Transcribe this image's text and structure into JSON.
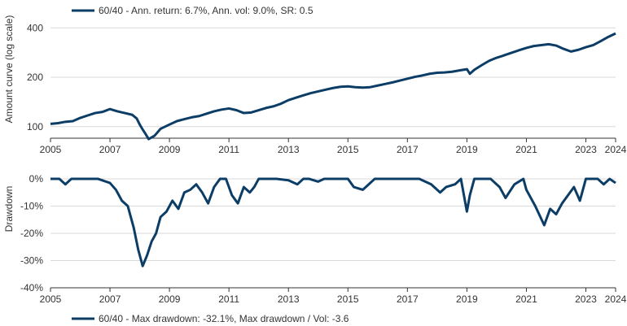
{
  "colors": {
    "series": "#0b3d66",
    "grid": "#d9d9d9",
    "axis": "#333333"
  },
  "chart_data": [
    {
      "type": "line",
      "ylabel": "Amount curve (log scale)",
      "yscale": "log",
      "ylim": [
        85,
        420
      ],
      "yticks": [
        100,
        200,
        400
      ],
      "xlim": [
        2005,
        2024
      ],
      "xticks": [
        2005,
        2007,
        2009,
        2011,
        2013,
        2015,
        2017,
        2019,
        2021,
        2023,
        2024
      ],
      "grid": "horizontal",
      "legend": {
        "placement": "top-left",
        "label": "60/40 - Ann. return: 6.7%,  Ann. vol: 9.0%, SR: 0.5"
      },
      "series": [
        {
          "name": "60/40 - Ann. return: 6.7%,  Ann. vol: 9.0%, SR: 0.5",
          "x": [
            2005.0,
            2005.25,
            2005.5,
            2005.75,
            2006.0,
            2006.25,
            2006.5,
            2006.75,
            2007.0,
            2007.25,
            2007.5,
            2007.75,
            2007.9,
            2008.0,
            2008.1,
            2008.2,
            2008.3,
            2008.5,
            2008.7,
            2009.0,
            2009.25,
            2009.5,
            2009.75,
            2010.0,
            2010.25,
            2010.5,
            2010.75,
            2011.0,
            2011.25,
            2011.5,
            2011.75,
            2012.0,
            2012.25,
            2012.5,
            2012.75,
            2013.0,
            2013.25,
            2013.5,
            2013.75,
            2014.0,
            2014.25,
            2014.5,
            2014.75,
            2015.0,
            2015.25,
            2015.5,
            2015.75,
            2016.0,
            2016.25,
            2016.5,
            2016.75,
            2017.0,
            2017.25,
            2017.5,
            2017.75,
            2018.0,
            2018.25,
            2018.5,
            2018.75,
            2019.0,
            2019.1,
            2019.25,
            2019.5,
            2019.75,
            2020.0,
            2020.15,
            2020.25,
            2020.5,
            2020.75,
            2021.0,
            2021.25,
            2021.5,
            2021.75,
            2022.0,
            2022.25,
            2022.5,
            2022.75,
            2023.0,
            2023.25,
            2023.5,
            2023.75,
            2024.0
          ],
          "values": [
            104,
            105,
            107,
            108,
            113,
            117,
            121,
            123,
            128,
            124,
            121,
            118,
            112,
            103,
            96,
            90,
            84,
            88,
            97,
            103,
            108,
            111,
            114,
            116,
            120,
            124,
            127,
            129,
            126,
            121,
            122,
            126,
            130,
            133,
            138,
            145,
            150,
            155,
            160,
            164,
            168,
            172,
            175,
            176,
            174,
            173,
            174,
            178,
            182,
            186,
            191,
            196,
            201,
            205,
            210,
            213,
            214,
            216,
            220,
            224,
            210,
            222,
            237,
            252,
            263,
            268,
            272,
            282,
            292,
            302,
            310,
            314,
            318,
            312,
            298,
            287,
            294,
            305,
            314,
            332,
            352,
            370
          ]
        }
      ]
    },
    {
      "type": "line",
      "ylabel": "Drawdown",
      "ylim": [
        -40,
        3
      ],
      "yticks": [
        0,
        -10,
        -20,
        -30,
        -40
      ],
      "ytick_labels": [
        "0%",
        "-10%",
        "-20%",
        "-30%",
        "-40%"
      ],
      "xlim": [
        2005,
        2024
      ],
      "xticks": [
        2005,
        2007,
        2009,
        2011,
        2013,
        2015,
        2017,
        2019,
        2021,
        2023,
        2024
      ],
      "grid": "horizontal",
      "legend": {
        "placement": "bottom-left",
        "label": "60/40 - Max drawdown: -32.1%,  Max drawdown / Vol: -3.6"
      },
      "series": [
        {
          "name": "60/40 - Max drawdown: -32.1%,  Max drawdown / Vol: -3.6",
          "x": [
            2005.0,
            2005.3,
            2005.5,
            2005.7,
            2006.0,
            2006.3,
            2006.6,
            2007.0,
            2007.2,
            2007.4,
            2007.6,
            2007.8,
            2007.95,
            2008.1,
            2008.25,
            2008.4,
            2008.55,
            2008.7,
            2008.9,
            2009.1,
            2009.3,
            2009.5,
            2009.7,
            2009.9,
            2010.1,
            2010.3,
            2010.5,
            2010.7,
            2010.9,
            2011.1,
            2011.3,
            2011.5,
            2011.7,
            2011.85,
            2012.0,
            2012.3,
            2012.6,
            2013.0,
            2013.3,
            2013.5,
            2013.7,
            2014.0,
            2014.2,
            2014.5,
            2014.8,
            2015.0,
            2015.2,
            2015.5,
            2015.7,
            2015.9,
            2016.1,
            2016.4,
            2016.7,
            2017.0,
            2017.4,
            2017.8,
            2018.1,
            2018.3,
            2018.6,
            2018.8,
            2019.0,
            2019.1,
            2019.25,
            2019.5,
            2019.8,
            2020.1,
            2020.3,
            2020.6,
            2020.9,
            2021.0,
            2021.3,
            2021.6,
            2021.8,
            2022.0,
            2022.2,
            2022.4,
            2022.6,
            2022.8,
            2023.0,
            2023.2,
            2023.4,
            2023.6,
            2023.8,
            2024.0
          ],
          "values": [
            0,
            0,
            -2,
            0,
            0,
            0,
            0,
            -1.5,
            -4,
            -8,
            -10,
            -18,
            -26,
            -32,
            -28,
            -23,
            -20,
            -14,
            -12,
            -8,
            -11,
            -5,
            -4,
            -2,
            -5,
            -9,
            -3,
            0,
            0,
            -6,
            -9,
            -3,
            -5,
            -3,
            0,
            0,
            0,
            -0.5,
            -2,
            0,
            0,
            -1,
            0,
            0,
            0,
            0,
            -3,
            -4,
            -2,
            0,
            0,
            0,
            0,
            0,
            0,
            -2,
            -5,
            -3,
            -2,
            0,
            -12,
            -6,
            0,
            0,
            0,
            -3,
            -7,
            -2,
            0,
            -4,
            -10,
            -17,
            -11,
            -13,
            -9,
            -6,
            -3,
            -8,
            0,
            0,
            0,
            -2,
            0,
            -1.5
          ]
        }
      ]
    }
  ]
}
